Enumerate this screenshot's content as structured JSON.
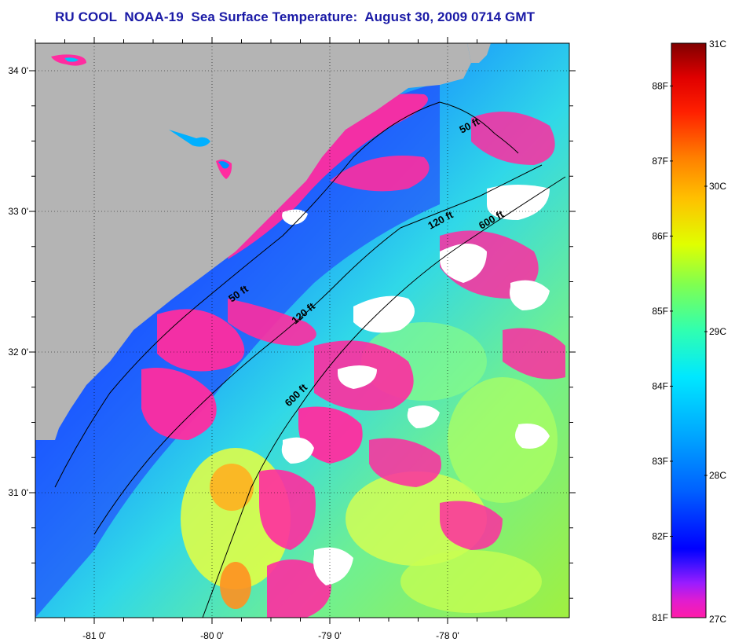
{
  "title": "RU COOL  NOAA-19  Sea Surface Temperature:  August 30, 2009 0714 GMT",
  "map": {
    "lat_ticks": [
      {
        "value": 34,
        "label": "34 0'"
      },
      {
        "value": 33,
        "label": "33 0'"
      },
      {
        "value": 32,
        "label": "32 0'"
      },
      {
        "value": 31,
        "label": "31 0'"
      }
    ],
    "lon_ticks": [
      {
        "value": -81,
        "label": "-81 0'"
      },
      {
        "value": -80,
        "label": "-80 0'"
      },
      {
        "value": -79,
        "label": "-79 0'"
      },
      {
        "value": -78,
        "label": "-78 0'"
      }
    ],
    "contours": [
      {
        "name": "50-ft-isobath",
        "label": "50 ft"
      },
      {
        "name": "120-ft-isobath",
        "label": "120 ft"
      },
      {
        "name": "600-ft-isobath",
        "label": "600 ft"
      }
    ],
    "land_color": "#b4b4b4"
  },
  "colorbar": {
    "fahrenheit_labels": [
      "88F",
      "87F",
      "86F",
      "85F",
      "84F",
      "83F",
      "82F",
      "81F"
    ],
    "celsius_labels": [
      "31C",
      "30C",
      "29C",
      "28C",
      "27C"
    ],
    "stops": [
      {
        "color": "#ff1ca8",
        "pos": 0.0
      },
      {
        "color": "#e01cd0",
        "pos": 0.03
      },
      {
        "color": "#9a1cff",
        "pos": 0.06
      },
      {
        "color": "#3a10ff",
        "pos": 0.095
      },
      {
        "color": "#0000ff",
        "pos": 0.12
      },
      {
        "color": "#0060ff",
        "pos": 0.22
      },
      {
        "color": "#00a8ff",
        "pos": 0.32
      },
      {
        "color": "#00e8ff",
        "pos": 0.42
      },
      {
        "color": "#30ffb0",
        "pos": 0.5
      },
      {
        "color": "#80ff50",
        "pos": 0.58
      },
      {
        "color": "#e0ff00",
        "pos": 0.65
      },
      {
        "color": "#ffc000",
        "pos": 0.73
      },
      {
        "color": "#ff8000",
        "pos": 0.8
      },
      {
        "color": "#ff2000",
        "pos": 0.88
      },
      {
        "color": "#e00000",
        "pos": 0.94
      },
      {
        "color": "#800000",
        "pos": 1.0
      }
    ]
  }
}
